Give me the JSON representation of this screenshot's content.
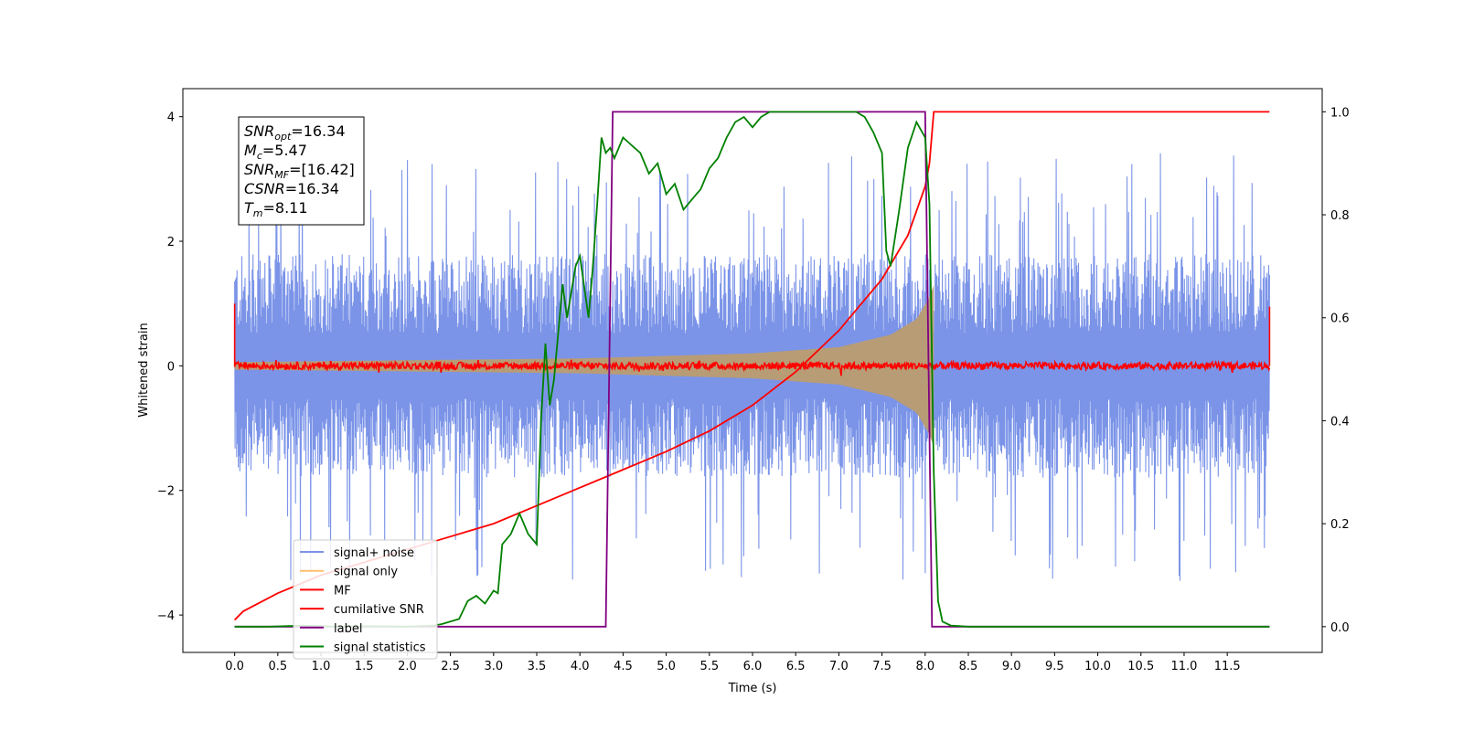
{
  "chart_data": {
    "type": "line",
    "xlabel": "Time (s)",
    "ylabel": "Whitened strain",
    "xlim": [
      -0.6,
      12.6
    ],
    "ylim": [
      -4.6,
      4.45
    ],
    "ylim_right": [
      -0.05,
      1.045
    ],
    "x_ticks": [
      {
        "value": 0.0,
        "label": "0.0"
      },
      {
        "value": 0.5,
        "label": "0.5"
      },
      {
        "value": 1.0,
        "label": "1.0"
      },
      {
        "value": 1.5,
        "label": "1.5"
      },
      {
        "value": 2.0,
        "label": "2.0"
      },
      {
        "value": 2.5,
        "label": "2.5"
      },
      {
        "value": 3.0,
        "label": "3.0"
      },
      {
        "value": 3.5,
        "label": "3.5"
      },
      {
        "value": 4.0,
        "label": "4.0"
      },
      {
        "value": 4.5,
        "label": "4.5"
      },
      {
        "value": 5.0,
        "label": "5.0"
      },
      {
        "value": 5.5,
        "label": "5.5"
      },
      {
        "value": 6.0,
        "label": "6.0"
      },
      {
        "value": 6.5,
        "label": "6.5"
      },
      {
        "value": 7.0,
        "label": "7.0"
      },
      {
        "value": 7.5,
        "label": "7.5"
      },
      {
        "value": 8.0,
        "label": "8.0"
      },
      {
        "value": 8.5,
        "label": "8.5"
      },
      {
        "value": 9.0,
        "label": "9.0"
      },
      {
        "value": 9.5,
        "label": "9.5"
      },
      {
        "value": 10.0,
        "label": "10.0"
      },
      {
        "value": 10.5,
        "label": "10.5"
      },
      {
        "value": 11.0,
        "label": "11.0"
      },
      {
        "value": 11.5,
        "label": "11.5"
      }
    ],
    "y_ticks_left": [
      {
        "value": -4,
        "label": "−4"
      },
      {
        "value": -2,
        "label": "−2"
      },
      {
        "value": 0,
        "label": "0"
      },
      {
        "value": 2,
        "label": "2"
      },
      {
        "value": 4,
        "label": "4"
      }
    ],
    "y_ticks_right": [
      {
        "value": 0.0,
        "label": "0.0"
      },
      {
        "value": 0.2,
        "label": "0.2"
      },
      {
        "value": 0.4,
        "label": "0.4"
      },
      {
        "value": 0.6,
        "label": "0.6"
      },
      {
        "value": 0.8,
        "label": "0.8"
      },
      {
        "value": 1.0,
        "label": "1.0"
      }
    ],
    "legend_position": "lower-left",
    "info_box": {
      "lines": [
        {
          "base": "SNR",
          "sub": "opt",
          "value": "=16.34"
        },
        {
          "base": "M",
          "sub": "c",
          "value": "=5.47"
        },
        {
          "base": "SNR",
          "sub": "MF",
          "value": "=[16.42]"
        },
        {
          "base": "CSNR",
          "sub": "",
          "value": "=16.34"
        },
        {
          "base": "T",
          "sub": "m",
          "value": "=8.11"
        }
      ]
    },
    "series": [
      {
        "name": "signal+ noise",
        "axis": "left",
        "color": "#7b94e8",
        "kind": "noise",
        "t_start": 0.0,
        "t_end": 11.99,
        "envelope_typical": 2.3,
        "spike_max": 3.5
      },
      {
        "name": "signal only",
        "axis": "left",
        "color": "#ffa500",
        "fill_color": "#b89c76",
        "kind": "chirp",
        "t_start": 0.0,
        "t_end": 8.1,
        "amplitude_points": [
          [
            0.0,
            0.06
          ],
          [
            4.0,
            0.12
          ],
          [
            6.0,
            0.2
          ],
          [
            7.0,
            0.3
          ],
          [
            7.6,
            0.5
          ],
          [
            7.9,
            0.75
          ],
          [
            8.05,
            1.1
          ],
          [
            8.1,
            1.3
          ]
        ]
      },
      {
        "name": "MF",
        "axis": "left",
        "color": "#ff0000",
        "kind": "flat-noise",
        "t_start": 0.0,
        "t_end": 11.99,
        "center": 0.0,
        "jitter": 0.06,
        "edge_spikes": [
          [
            0.0,
            1.0
          ],
          [
            11.99,
            0.95
          ]
        ]
      },
      {
        "name": "cumilative SNR",
        "axis": "right",
        "color": "#ff0000",
        "points": [
          [
            0.0,
            0.013
          ],
          [
            0.1,
            0.03
          ],
          [
            0.5,
            0.065
          ],
          [
            1.0,
            0.1
          ],
          [
            1.5,
            0.125
          ],
          [
            2.0,
            0.15
          ],
          [
            2.5,
            0.175
          ],
          [
            3.0,
            0.2
          ],
          [
            3.5,
            0.235
          ],
          [
            4.0,
            0.27
          ],
          [
            4.5,
            0.305
          ],
          [
            5.0,
            0.34
          ],
          [
            5.5,
            0.38
          ],
          [
            6.0,
            0.43
          ],
          [
            6.5,
            0.495
          ],
          [
            7.0,
            0.575
          ],
          [
            7.5,
            0.675
          ],
          [
            7.8,
            0.76
          ],
          [
            8.0,
            0.855
          ],
          [
            8.05,
            0.9
          ],
          [
            8.1,
            1.0
          ],
          [
            11.99,
            1.0
          ]
        ]
      },
      {
        "name": "label",
        "axis": "right",
        "color": "#800080",
        "points": [
          [
            0.0,
            0.0
          ],
          [
            4.3,
            0.0
          ],
          [
            4.38,
            1.0
          ],
          [
            8.0,
            1.0
          ],
          [
            8.08,
            0.0
          ],
          [
            11.99,
            0.0
          ]
        ]
      },
      {
        "name": "signal statistics",
        "axis": "right",
        "color": "#008000",
        "points": [
          [
            0.0,
            0.0
          ],
          [
            0.4,
            0.0
          ],
          [
            0.8,
            0.002
          ],
          [
            1.2,
            0.0
          ],
          [
            1.6,
            0.001
          ],
          [
            2.0,
            0.0
          ],
          [
            2.3,
            0.002
          ],
          [
            2.4,
            0.005
          ],
          [
            2.6,
            0.015
          ],
          [
            2.7,
            0.05
          ],
          [
            2.8,
            0.06
          ],
          [
            2.9,
            0.045
          ],
          [
            3.0,
            0.07
          ],
          [
            3.05,
            0.065
          ],
          [
            3.1,
            0.16
          ],
          [
            3.2,
            0.18
          ],
          [
            3.3,
            0.22
          ],
          [
            3.4,
            0.18
          ],
          [
            3.5,
            0.16
          ],
          [
            3.55,
            0.4
          ],
          [
            3.6,
            0.55
          ],
          [
            3.65,
            0.43
          ],
          [
            3.7,
            0.48
          ],
          [
            3.8,
            0.665
          ],
          [
            3.85,
            0.6
          ],
          [
            3.95,
            0.7
          ],
          [
            4.0,
            0.72
          ],
          [
            4.05,
            0.66
          ],
          [
            4.1,
            0.6
          ],
          [
            4.15,
            0.7
          ],
          [
            4.2,
            0.82
          ],
          [
            4.25,
            0.95
          ],
          [
            4.3,
            0.92
          ],
          [
            4.35,
            0.93
          ],
          [
            4.4,
            0.91
          ],
          [
            4.5,
            0.95
          ],
          [
            4.6,
            0.935
          ],
          [
            4.7,
            0.92
          ],
          [
            4.8,
            0.88
          ],
          [
            4.9,
            0.9
          ],
          [
            5.0,
            0.84
          ],
          [
            5.1,
            0.86
          ],
          [
            5.2,
            0.81
          ],
          [
            5.3,
            0.83
          ],
          [
            5.4,
            0.85
          ],
          [
            5.5,
            0.89
          ],
          [
            5.6,
            0.91
          ],
          [
            5.7,
            0.95
          ],
          [
            5.8,
            0.98
          ],
          [
            5.9,
            0.99
          ],
          [
            6.0,
            0.97
          ],
          [
            6.1,
            0.99
          ],
          [
            6.2,
            1.0
          ],
          [
            6.5,
            1.0
          ],
          [
            6.8,
            1.0
          ],
          [
            7.0,
            1.0
          ],
          [
            7.2,
            1.0
          ],
          [
            7.3,
            0.99
          ],
          [
            7.4,
            0.96
          ],
          [
            7.5,
            0.92
          ],
          [
            7.55,
            0.73
          ],
          [
            7.6,
            0.7
          ],
          [
            7.7,
            0.81
          ],
          [
            7.8,
            0.93
          ],
          [
            7.9,
            0.98
          ],
          [
            8.0,
            0.95
          ],
          [
            8.05,
            0.82
          ],
          [
            8.1,
            0.3
          ],
          [
            8.15,
            0.05
          ],
          [
            8.2,
            0.01
          ],
          [
            8.3,
            0.002
          ],
          [
            8.5,
            0.0
          ],
          [
            11.99,
            0.0
          ]
        ]
      }
    ]
  }
}
